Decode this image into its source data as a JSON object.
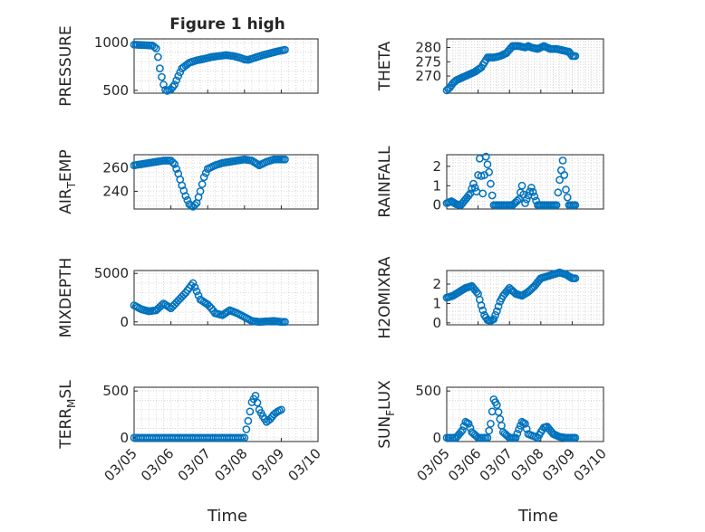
{
  "figure": {
    "title": "Figure 1 high",
    "xlabel": "Time",
    "xticks": [
      "03/05",
      "03/06",
      "03/07",
      "03/08",
      "03/09",
      "03/10"
    ],
    "marker_color": "#0072BD",
    "grid_color": "#d9d9d9"
  },
  "chart_data": [
    {
      "type": "scatter",
      "name": "pressure",
      "ylabel": "PRESSURE",
      "ylim": [
        470,
        1040
      ],
      "yticks": [
        500,
        1000
      ],
      "xlim": [
        0,
        5
      ],
      "x": [
        0,
        0.25,
        0.5,
        0.6,
        0.65,
        0.7,
        0.75,
        0.8,
        0.85,
        0.9,
        1.0,
        1.1,
        1.2,
        1.3,
        1.5,
        1.7,
        1.9,
        2.1,
        2.3,
        2.5,
        2.7,
        2.9,
        3.0,
        3.1,
        3.3,
        3.5,
        3.7,
        3.9,
        4.1
      ],
      "y": [
        980,
        975,
        970,
        940,
        850,
        730,
        640,
        560,
        505,
        495,
        510,
        560,
        650,
        730,
        790,
        815,
        830,
        850,
        860,
        870,
        860,
        840,
        825,
        820,
        845,
        870,
        890,
        910,
        925
      ]
    },
    {
      "type": "scatter",
      "name": "theta",
      "ylabel": "THETA",
      "ylim": [
        264,
        283
      ],
      "yticks": [
        270,
        275,
        280
      ],
      "xlim": [
        0,
        5
      ],
      "x": [
        0,
        0.1,
        0.2,
        0.3,
        0.4,
        0.5,
        0.7,
        0.9,
        1.1,
        1.3,
        1.5,
        1.7,
        1.9,
        2.1,
        2.3,
        2.5,
        2.6,
        2.7,
        2.9,
        3.1,
        3.3,
        3.5,
        3.7,
        3.9,
        4.0,
        4.1
      ],
      "y": [
        265,
        266,
        267.5,
        268.5,
        269,
        269.5,
        270.5,
        271.5,
        273,
        276.5,
        276.5,
        277,
        278,
        280.5,
        280.5,
        280,
        280.5,
        280,
        279.5,
        280.5,
        279.5,
        279.5,
        279,
        278.5,
        277,
        277
      ]
    },
    {
      "type": "scatter",
      "name": "air_temp",
      "ylabel": "AIR_TEMP",
      "ylim": [
        225,
        271
      ],
      "yticks": [
        240,
        260
      ],
      "xlim": [
        0,
        5
      ],
      "x": [
        0,
        0.2,
        0.4,
        0.6,
        0.8,
        1.0,
        1.1,
        1.2,
        1.3,
        1.4,
        1.5,
        1.6,
        1.7,
        1.8,
        1.9,
        2.0,
        2.2,
        2.4,
        2.6,
        2.8,
        3.0,
        3.2,
        3.4,
        3.6,
        3.8,
        4.0,
        4.1
      ],
      "y": [
        262,
        263,
        264,
        265,
        266,
        266,
        263,
        255,
        245,
        236,
        229,
        227,
        230,
        240,
        252,
        259,
        262,
        264,
        265,
        266,
        267,
        266,
        262,
        265,
        267,
        267,
        267
      ]
    },
    {
      "type": "scatter",
      "name": "rainfall",
      "ylabel": "RAINFALL",
      "ylim": [
        -0.2,
        2.6
      ],
      "yticks": [
        0,
        1,
        2
      ],
      "xlim": [
        0,
        5
      ],
      "x": [
        0,
        0.15,
        0.3,
        0.45,
        0.6,
        0.75,
        0.85,
        0.95,
        1.05,
        1.15,
        1.25,
        1.35,
        1.45,
        1.5,
        1.6,
        1.7,
        1.8,
        1.9,
        2.1,
        2.3,
        2.4,
        2.5,
        2.7,
        2.9,
        3.1,
        3.3,
        3.5,
        3.6,
        3.7,
        3.8,
        3.9,
        4.0,
        4.1
      ],
      "y": [
        0.1,
        0.2,
        0.05,
        0,
        0.3,
        0.6,
        1.1,
        0.7,
        2.4,
        0.6,
        2.5,
        1.7,
        0.5,
        0,
        0,
        0,
        0,
        0,
        0,
        0.3,
        1.0,
        0.1,
        0.9,
        0,
        0,
        0,
        0,
        1.3,
        2.3,
        0.8,
        0,
        0,
        0
      ]
    },
    {
      "type": "scatter",
      "name": "mixdepth",
      "ylabel": "MIXDEPTH",
      "ylim": [
        -300,
        5300
      ],
      "yticks": [
        0,
        5000
      ],
      "xlim": [
        0,
        5
      ],
      "x": [
        0,
        0.2,
        0.4,
        0.6,
        0.8,
        1.0,
        1.2,
        1.4,
        1.6,
        1.8,
        2.0,
        2.1,
        2.2,
        2.4,
        2.6,
        2.8,
        3.0,
        3.2,
        3.4,
        3.6,
        3.8,
        4.0,
        4.1
      ],
      "y": [
        1700,
        1300,
        1100,
        1200,
        1900,
        1400,
        2200,
        3000,
        4000,
        2300,
        1800,
        1400,
        900,
        700,
        1200,
        900,
        500,
        100,
        0,
        50,
        100,
        0,
        0
      ]
    },
    {
      "type": "scatter",
      "name": "h2omixra",
      "ylabel": "H2OMIXRA",
      "ylim": [
        -0.1,
        2.7
      ],
      "yticks": [
        0,
        1,
        2
      ],
      "xlim": [
        0,
        5
      ],
      "x": [
        0,
        0.2,
        0.4,
        0.6,
        0.8,
        1.0,
        1.1,
        1.2,
        1.3,
        1.4,
        1.5,
        1.6,
        1.7,
        1.8,
        2.0,
        2.2,
        2.4,
        2.6,
        2.8,
        3.0,
        3.2,
        3.4,
        3.6,
        3.8,
        4.0,
        4.1
      ],
      "y": [
        1.3,
        1.4,
        1.6,
        1.8,
        1.9,
        1.5,
        0.9,
        0.4,
        0.15,
        0.1,
        0.2,
        0.6,
        1.1,
        1.4,
        1.8,
        1.5,
        1.4,
        1.6,
        1.9,
        2.3,
        2.4,
        2.5,
        2.6,
        2.5,
        2.3,
        2.3
      ]
    },
    {
      "type": "scatter",
      "name": "terr_msl",
      "ylabel": "TERR_MSL",
      "ylim": [
        -40,
        540
      ],
      "yticks": [
        0,
        500
      ],
      "xlim": [
        0,
        5
      ],
      "x": [
        0,
        0.3,
        0.6,
        0.9,
        1.2,
        1.5,
        1.8,
        2.1,
        2.4,
        2.7,
        3.0,
        3.1,
        3.2,
        3.3,
        3.4,
        3.5,
        3.6,
        3.7,
        3.8,
        3.9,
        4.0
      ],
      "y": [
        0,
        0,
        0,
        0,
        0,
        0,
        0,
        0,
        0,
        0,
        0,
        180,
        380,
        450,
        300,
        230,
        170,
        200,
        250,
        280,
        300
      ]
    },
    {
      "type": "scatter",
      "name": "sun_flux",
      "ylabel": "SUN_FLUX",
      "ylim": [
        -40,
        540
      ],
      "yticks": [
        0,
        500
      ],
      "xlim": [
        0,
        5
      ],
      "x": [
        0,
        0.3,
        0.5,
        0.6,
        0.7,
        0.8,
        1.0,
        1.3,
        1.4,
        1.5,
        1.6,
        1.7,
        1.8,
        2.0,
        2.2,
        2.3,
        2.4,
        2.5,
        2.6,
        2.9,
        3.0,
        3.1,
        3.2,
        3.4,
        3.6,
        3.8,
        4.0,
        4.1
      ],
      "y": [
        0,
        0,
        80,
        170,
        150,
        60,
        0,
        0,
        150,
        410,
        350,
        200,
        60,
        0,
        0,
        90,
        170,
        150,
        40,
        0,
        60,
        110,
        120,
        40,
        10,
        0,
        0,
        0
      ]
    }
  ]
}
